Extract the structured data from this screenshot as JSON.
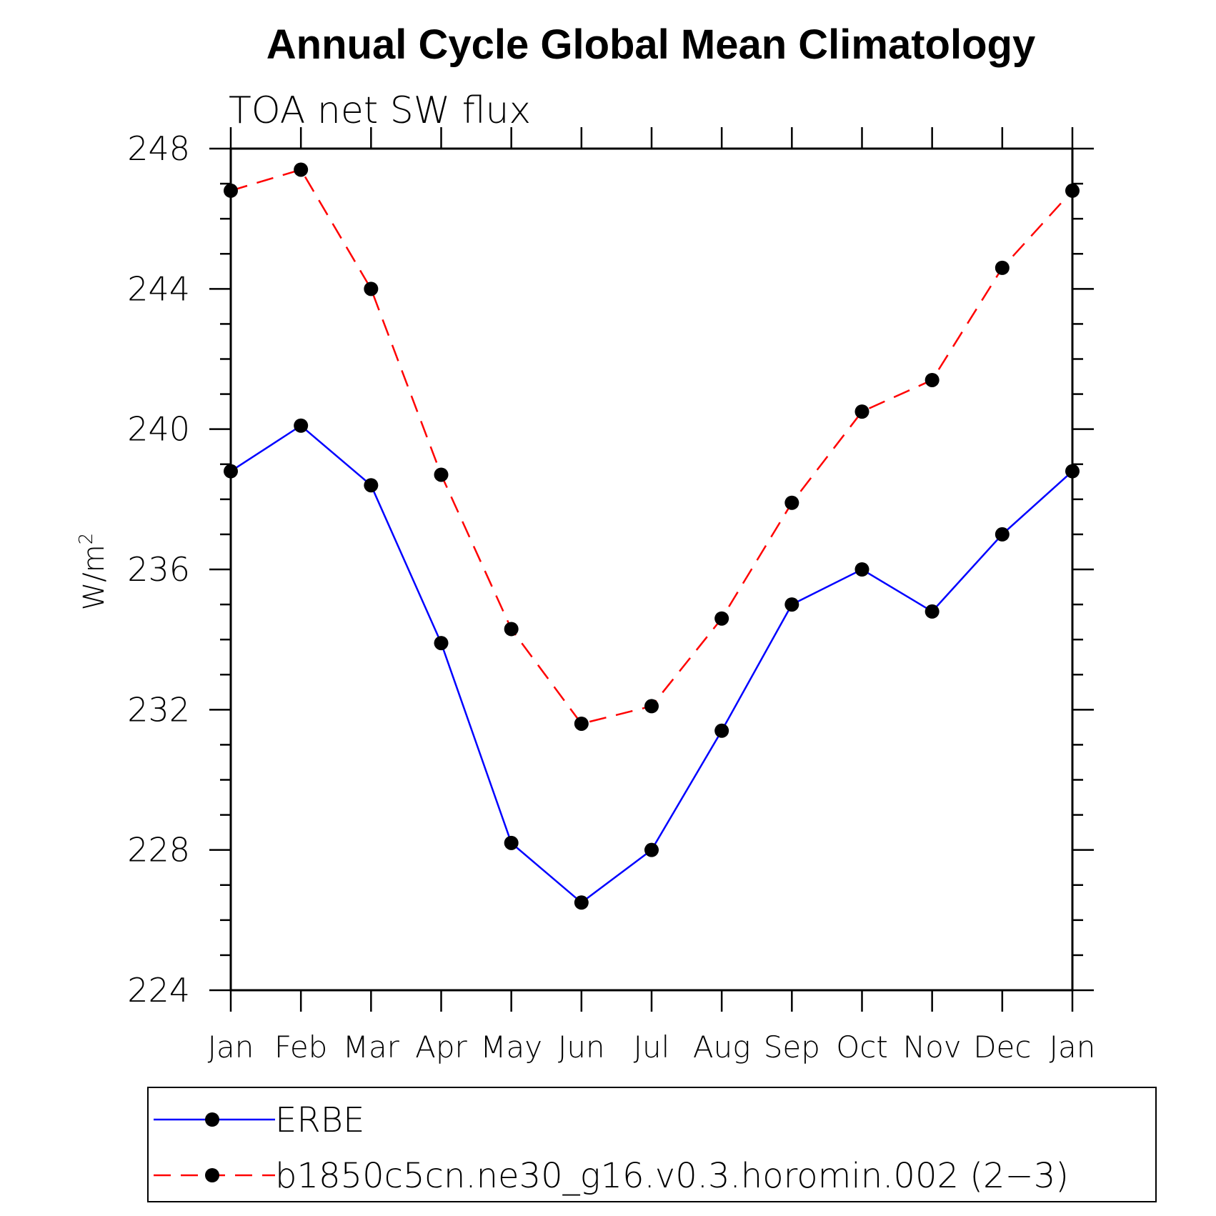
{
  "chart_data": {
    "type": "line",
    "title": "Annual Cycle Global Mean Climatology",
    "subtitle": "TOA net SW flux",
    "ylabel": "W/m",
    "ylabel_superscript": "2",
    "ylim": [
      224,
      248
    ],
    "yticks": [
      "224",
      "228",
      "232",
      "236",
      "240",
      "244",
      "248"
    ],
    "categories": [
      "Jan",
      "Feb",
      "Mar",
      "Apr",
      "May",
      "Jun",
      "Jul",
      "Aug",
      "Sep",
      "Oct",
      "Nov",
      "Dec",
      "Jan"
    ],
    "series": [
      {
        "name": "ERBE",
        "color": "#0000ff",
        "line_style": "solid",
        "marker": "filled-circle",
        "values": [
          238.8,
          240.1,
          238.4,
          233.9,
          228.2,
          226.5,
          228.0,
          231.4,
          235.0,
          236.0,
          234.8,
          237.0,
          238.8
        ]
      },
      {
        "name": "b1850c5cn.ne30_g16.v0.3.horomin.002 (2−3)",
        "color": "#ff0000",
        "line_style": "dashed",
        "marker": "filled-circle",
        "values": [
          246.8,
          247.4,
          244.0,
          238.7,
          234.3,
          231.6,
          232.1,
          234.6,
          237.9,
          240.5,
          241.4,
          244.6,
          246.8
        ]
      }
    ],
    "grid": false,
    "legend_position": "bottom"
  }
}
